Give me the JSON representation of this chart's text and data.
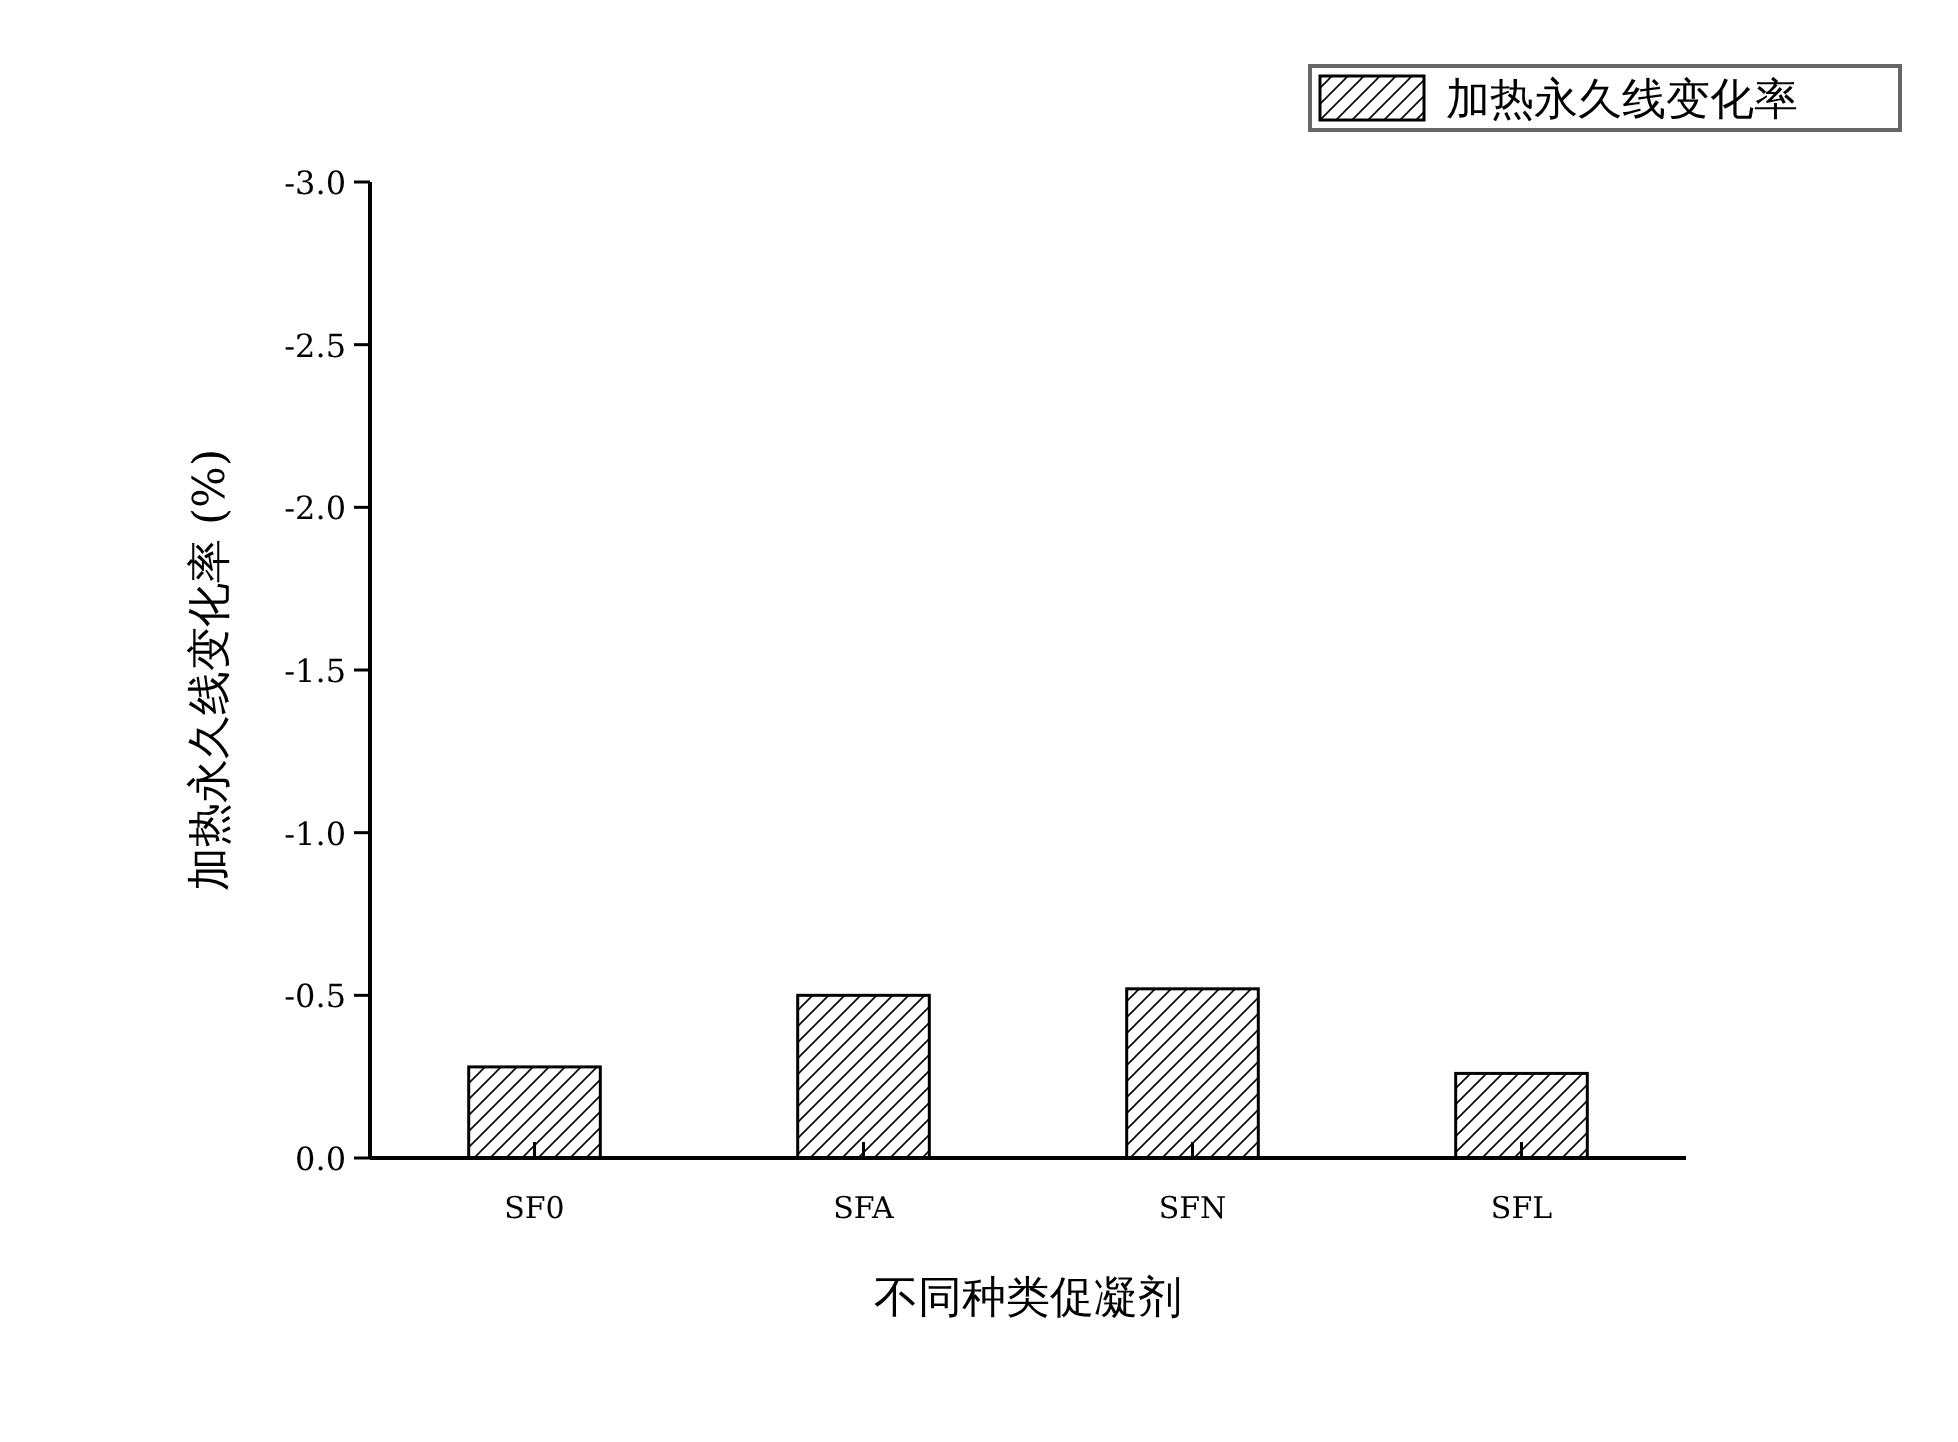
{
  "chart_data": {
    "type": "bar",
    "xlabel": "不同种类促凝剂",
    "ylabel": "加热永久线变化率 (%)",
    "categories": [
      "SF0",
      "SFA",
      "SFN",
      "SFL"
    ],
    "series": [
      {
        "name": "加热永久线变化率",
        "color": "#000000",
        "values": [
          -0.28,
          -0.5,
          -0.52,
          -0.26
        ]
      }
    ],
    "ylim": [
      0,
      -3
    ],
    "yticks": [
      {
        "value": 0,
        "label": "0.0"
      },
      {
        "value": -0.5,
        "label": "-0.5"
      },
      {
        "value": -1,
        "label": "-1.0"
      },
      {
        "value": -1.5,
        "label": "-1.5"
      },
      {
        "value": -2,
        "label": "-2.0"
      },
      {
        "value": -2.5,
        "label": "-2.5"
      },
      {
        "value": -3,
        "label": "-3.0"
      }
    ],
    "grid": false,
    "legend": "top right"
  }
}
